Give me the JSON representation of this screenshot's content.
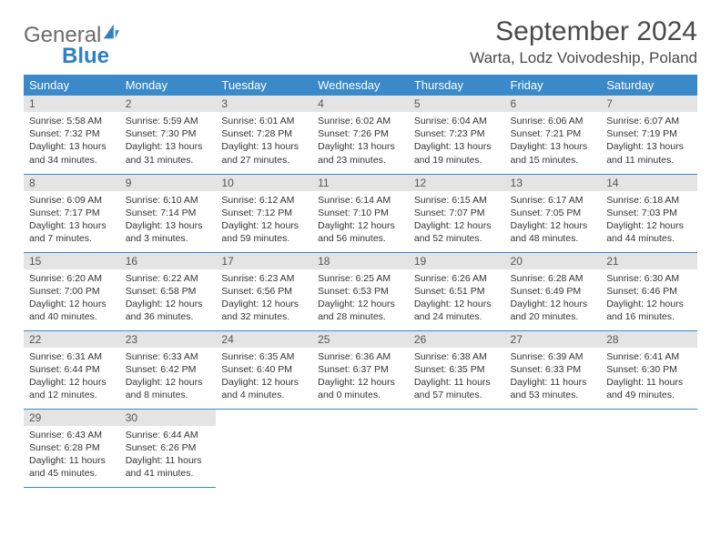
{
  "brand": {
    "part1": "General",
    "part2": "Blue"
  },
  "title": "September 2024",
  "location": "Warta, Lodz Voivodeship, Poland",
  "colors": {
    "header_bg": "#3a89c9",
    "header_text": "#ffffff",
    "daynum_bg": "#e4e4e4",
    "cell_border": "#3a89c9",
    "body_bg": "#ffffff",
    "text": "#333333",
    "logo_gray": "#6b6b6b",
    "logo_blue": "#2f7fc1"
  },
  "weekday_headers": [
    "Sunday",
    "Monday",
    "Tuesday",
    "Wednesday",
    "Thursday",
    "Friday",
    "Saturday"
  ],
  "layout": {
    "columns": 7,
    "rows": 5,
    "start_weekday_index": 0,
    "font_family": "Arial",
    "title_fontsize": 30,
    "location_fontsize": 17,
    "weekday_fontsize": 13,
    "daynum_fontsize": 12,
    "body_fontsize": 10.5
  },
  "days": [
    {
      "n": "1",
      "sunrise": "5:58 AM",
      "sunset": "7:32 PM",
      "daylight": "13 hours and 34 minutes."
    },
    {
      "n": "2",
      "sunrise": "5:59 AM",
      "sunset": "7:30 PM",
      "daylight": "13 hours and 31 minutes."
    },
    {
      "n": "3",
      "sunrise": "6:01 AM",
      "sunset": "7:28 PM",
      "daylight": "13 hours and 27 minutes."
    },
    {
      "n": "4",
      "sunrise": "6:02 AM",
      "sunset": "7:26 PM",
      "daylight": "13 hours and 23 minutes."
    },
    {
      "n": "5",
      "sunrise": "6:04 AM",
      "sunset": "7:23 PM",
      "daylight": "13 hours and 19 minutes."
    },
    {
      "n": "6",
      "sunrise": "6:06 AM",
      "sunset": "7:21 PM",
      "daylight": "13 hours and 15 minutes."
    },
    {
      "n": "7",
      "sunrise": "6:07 AM",
      "sunset": "7:19 PM",
      "daylight": "13 hours and 11 minutes."
    },
    {
      "n": "8",
      "sunrise": "6:09 AM",
      "sunset": "7:17 PM",
      "daylight": "13 hours and 7 minutes."
    },
    {
      "n": "9",
      "sunrise": "6:10 AM",
      "sunset": "7:14 PM",
      "daylight": "13 hours and 3 minutes."
    },
    {
      "n": "10",
      "sunrise": "6:12 AM",
      "sunset": "7:12 PM",
      "daylight": "12 hours and 59 minutes."
    },
    {
      "n": "11",
      "sunrise": "6:14 AM",
      "sunset": "7:10 PM",
      "daylight": "12 hours and 56 minutes."
    },
    {
      "n": "12",
      "sunrise": "6:15 AM",
      "sunset": "7:07 PM",
      "daylight": "12 hours and 52 minutes."
    },
    {
      "n": "13",
      "sunrise": "6:17 AM",
      "sunset": "7:05 PM",
      "daylight": "12 hours and 48 minutes."
    },
    {
      "n": "14",
      "sunrise": "6:18 AM",
      "sunset": "7:03 PM",
      "daylight": "12 hours and 44 minutes."
    },
    {
      "n": "15",
      "sunrise": "6:20 AM",
      "sunset": "7:00 PM",
      "daylight": "12 hours and 40 minutes."
    },
    {
      "n": "16",
      "sunrise": "6:22 AM",
      "sunset": "6:58 PM",
      "daylight": "12 hours and 36 minutes."
    },
    {
      "n": "17",
      "sunrise": "6:23 AM",
      "sunset": "6:56 PM",
      "daylight": "12 hours and 32 minutes."
    },
    {
      "n": "18",
      "sunrise": "6:25 AM",
      "sunset": "6:53 PM",
      "daylight": "12 hours and 28 minutes."
    },
    {
      "n": "19",
      "sunrise": "6:26 AM",
      "sunset": "6:51 PM",
      "daylight": "12 hours and 24 minutes."
    },
    {
      "n": "20",
      "sunrise": "6:28 AM",
      "sunset": "6:49 PM",
      "daylight": "12 hours and 20 minutes."
    },
    {
      "n": "21",
      "sunrise": "6:30 AM",
      "sunset": "6:46 PM",
      "daylight": "12 hours and 16 minutes."
    },
    {
      "n": "22",
      "sunrise": "6:31 AM",
      "sunset": "6:44 PM",
      "daylight": "12 hours and 12 minutes."
    },
    {
      "n": "23",
      "sunrise": "6:33 AM",
      "sunset": "6:42 PM",
      "daylight": "12 hours and 8 minutes."
    },
    {
      "n": "24",
      "sunrise": "6:35 AM",
      "sunset": "6:40 PM",
      "daylight": "12 hours and 4 minutes."
    },
    {
      "n": "25",
      "sunrise": "6:36 AM",
      "sunset": "6:37 PM",
      "daylight": "12 hours and 0 minutes."
    },
    {
      "n": "26",
      "sunrise": "6:38 AM",
      "sunset": "6:35 PM",
      "daylight": "11 hours and 57 minutes."
    },
    {
      "n": "27",
      "sunrise": "6:39 AM",
      "sunset": "6:33 PM",
      "daylight": "11 hours and 53 minutes."
    },
    {
      "n": "28",
      "sunrise": "6:41 AM",
      "sunset": "6:30 PM",
      "daylight": "11 hours and 49 minutes."
    },
    {
      "n": "29",
      "sunrise": "6:43 AM",
      "sunset": "6:28 PM",
      "daylight": "11 hours and 45 minutes."
    },
    {
      "n": "30",
      "sunrise": "6:44 AM",
      "sunset": "6:26 PM",
      "daylight": "11 hours and 41 minutes."
    }
  ],
  "labels": {
    "sunrise": "Sunrise:",
    "sunset": "Sunset:",
    "daylight": "Daylight:"
  }
}
